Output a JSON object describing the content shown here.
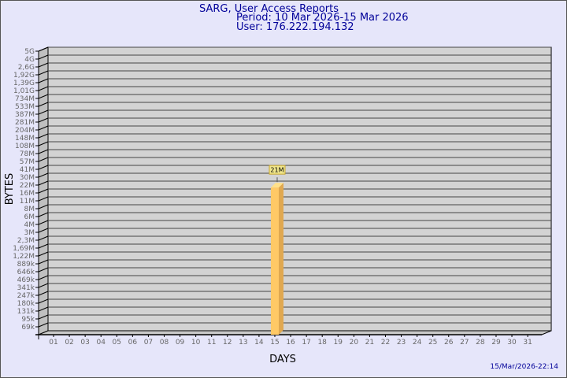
{
  "header": {
    "title": "SARG, User Access Reports",
    "period": "Period: 10 Mar 2026-15 Mar 2026",
    "user": "User: 176.222.194.132"
  },
  "timestamp": "15/Mar/2026-22:14",
  "colors": {
    "background": "#e6e6fa",
    "plot": "#d3d3d3",
    "bar": "#ffc966",
    "bar_side": "#e0a850",
    "title": "#000099"
  },
  "chart_data": {
    "type": "bar",
    "xlabel": "DAYS",
    "ylabel": "BYTES",
    "yscale": "log",
    "grid": true,
    "categories": [
      "01",
      "02",
      "03",
      "04",
      "05",
      "06",
      "07",
      "08",
      "09",
      "10",
      "11",
      "12",
      "13",
      "14",
      "15",
      "16",
      "17",
      "18",
      "19",
      "20",
      "21",
      "22",
      "23",
      "24",
      "25",
      "26",
      "27",
      "28",
      "29",
      "30",
      "31"
    ],
    "y_tick_labels": [
      "5G",
      "4G",
      "2,6G",
      "1,92G",
      "1,39G",
      "1,01G",
      "734M",
      "533M",
      "387M",
      "281M",
      "204M",
      "148M",
      "108M",
      "78M",
      "57M",
      "41M",
      "30M",
      "22M",
      "16M",
      "11M",
      "8M",
      "6M",
      "4M",
      "3M",
      "2,3M",
      "1,69M",
      "1,22M",
      "889k",
      "646k",
      "469k",
      "341k",
      "247k",
      "180k",
      "131k",
      "95k",
      "69k"
    ],
    "bars": [
      {
        "category": "15",
        "value_label": "21M",
        "value": 21000000
      }
    ]
  }
}
